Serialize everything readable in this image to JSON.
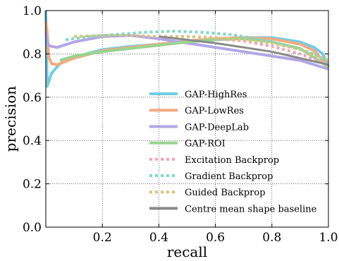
{
  "chart_data": {
    "type": "line",
    "title": "",
    "xlabel": "recall",
    "ylabel": "precision",
    "xlim": [
      0,
      1
    ],
    "ylim": [
      0,
      1
    ],
    "grid": true,
    "legend_position": "lower-right",
    "xticks": [
      "0.2",
      "0.4",
      "0.6",
      "0.8",
      "1.0"
    ],
    "yticks": [
      "0.0",
      "0.2",
      "0.4",
      "0.6",
      "0.8",
      "1.0"
    ],
    "series": [
      {
        "name": "GAP-HighRes",
        "color": "#6fcde3",
        "style": "solid",
        "x": [
          0.0,
          0.002,
          0.005,
          0.01,
          0.02,
          0.05,
          0.1,
          0.2,
          0.3,
          0.4,
          0.5,
          0.6,
          0.7,
          0.8,
          0.9,
          0.95,
          0.98,
          1.0
        ],
        "y": [
          1.0,
          0.85,
          0.65,
          0.67,
          0.71,
          0.755,
          0.785,
          0.82,
          0.835,
          0.845,
          0.855,
          0.865,
          0.875,
          0.875,
          0.855,
          0.83,
          0.8,
          0.74
        ]
      },
      {
        "name": "GAP-LowRes",
        "color": "#f2aa82",
        "style": "solid",
        "x": [
          0.0,
          0.005,
          0.01,
          0.02,
          0.04,
          0.1,
          0.2,
          0.3,
          0.4,
          0.5,
          0.6,
          0.7,
          0.8,
          0.9,
          0.95,
          1.0
        ],
        "y": [
          0.95,
          0.9,
          0.79,
          0.755,
          0.75,
          0.78,
          0.815,
          0.83,
          0.845,
          0.86,
          0.87,
          0.875,
          0.87,
          0.845,
          0.815,
          0.74
        ]
      },
      {
        "name": "GAP-DeepLab",
        "color": "#b2a6e6",
        "style": "solid",
        "x": [
          0.0,
          0.005,
          0.01,
          0.02,
          0.04,
          0.1,
          0.2,
          0.3,
          0.4,
          0.5,
          0.6,
          0.7,
          0.8,
          0.9,
          1.0
        ],
        "y": [
          0.9,
          0.86,
          0.84,
          0.835,
          0.83,
          0.855,
          0.88,
          0.885,
          0.87,
          0.85,
          0.83,
          0.81,
          0.79,
          0.77,
          0.73
        ]
      },
      {
        "name": "GAP-ROI",
        "color": "#99d48f",
        "style": "solid",
        "x": [
          0.05,
          0.1,
          0.2,
          0.3,
          0.4,
          0.5,
          0.6,
          0.7,
          0.8,
          0.9,
          1.0
        ],
        "y": [
          0.77,
          0.79,
          0.81,
          0.825,
          0.84,
          0.855,
          0.865,
          0.87,
          0.855,
          0.825,
          0.74
        ]
      },
      {
        "name": "Excitation Backprop",
        "color": "#f1a3b4",
        "style": "dotted",
        "x": [
          0.6,
          0.7,
          0.8,
          0.9,
          1.0
        ],
        "y": [
          0.87,
          0.86,
          0.835,
          0.8,
          0.75
        ]
      },
      {
        "name": "Gradient Backprop",
        "color": "#7fd7c4",
        "style": "dotted",
        "x": [
          0.07,
          0.15,
          0.25,
          0.35,
          0.45,
          0.55,
          0.65,
          0.75,
          0.85,
          0.95,
          1.0
        ],
        "y": [
          0.865,
          0.88,
          0.89,
          0.9,
          0.905,
          0.9,
          0.89,
          0.87,
          0.84,
          0.8,
          0.76
        ]
      },
      {
        "name": "Guided Backprop",
        "color": "#d9c27c",
        "style": "dotted",
        "x": [
          0.1,
          0.2,
          0.3,
          0.4,
          0.5,
          0.6,
          0.7,
          0.8,
          0.9,
          1.0
        ],
        "y": [
          0.88,
          0.885,
          0.885,
          0.88,
          0.88,
          0.875,
          0.865,
          0.85,
          0.82,
          0.77
        ]
      },
      {
        "name": "Centre mean shape baseline",
        "color": "#8a8a8a",
        "style": "solid",
        "x": [
          0.4,
          0.5,
          0.6,
          0.7,
          0.8,
          0.9,
          1.0
        ],
        "y": [
          0.88,
          0.865,
          0.85,
          0.83,
          0.81,
          0.78,
          0.75
        ]
      }
    ]
  }
}
